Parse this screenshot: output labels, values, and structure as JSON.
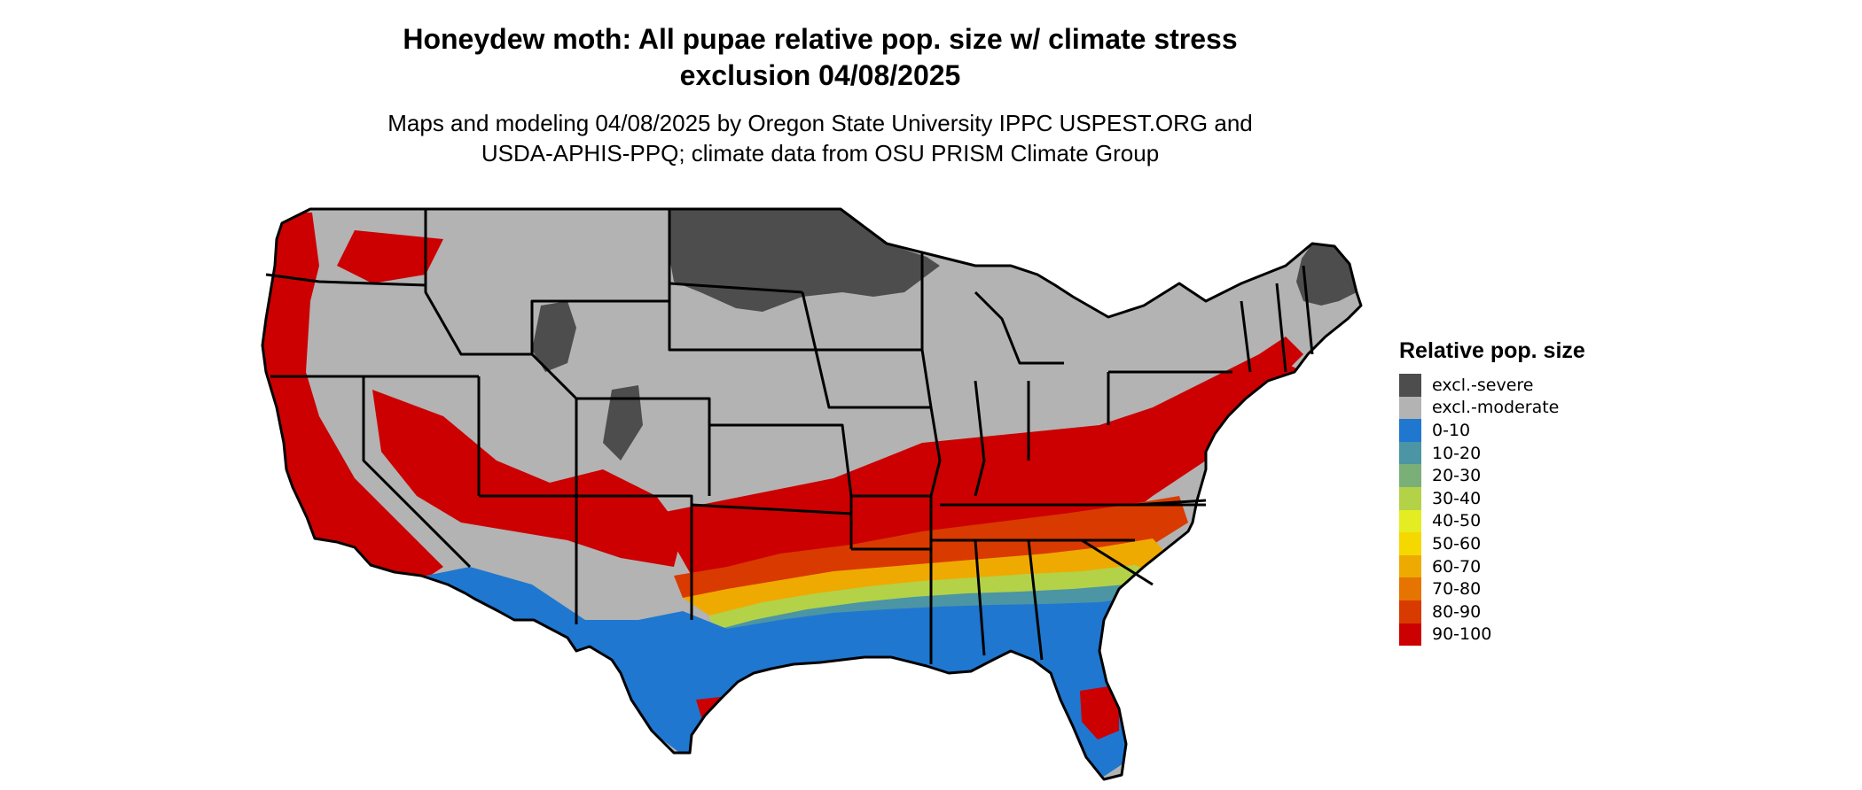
{
  "map": {
    "title_line1": "Honeydew moth: All pupae relative pop. size w/ climate stress",
    "title_line2": "exclusion 04/08/2025",
    "subtitle_line1": "Maps and modeling 04/08/2025 by Oregon State University IPPC USPEST.ORG and",
    "subtitle_line2": "USDA-APHIS-PPQ; climate data from OSU PRISM Climate Group",
    "region": "Contiguous United States"
  },
  "legend": {
    "title": "Relative pop. size",
    "items": [
      {
        "label": "excl.-severe",
        "color": "#4d4d4d"
      },
      {
        "label": "excl.-moderate",
        "color": "#b3b3b3"
      },
      {
        "label": "0-10",
        "color": "#1f77d0"
      },
      {
        "label": "10-20",
        "color": "#4b95a4"
      },
      {
        "label": "20-30",
        "color": "#7ab078"
      },
      {
        "label": "30-40",
        "color": "#b3d248"
      },
      {
        "label": "40-50",
        "color": "#e3ed22"
      },
      {
        "label": "50-60",
        "color": "#f5d800"
      },
      {
        "label": "60-70",
        "color": "#eeaa00"
      },
      {
        "label": "70-80",
        "color": "#e67400"
      },
      {
        "label": "80-90",
        "color": "#d93a00"
      },
      {
        "label": "90-100",
        "color": "#cc0000"
      }
    ]
  }
}
